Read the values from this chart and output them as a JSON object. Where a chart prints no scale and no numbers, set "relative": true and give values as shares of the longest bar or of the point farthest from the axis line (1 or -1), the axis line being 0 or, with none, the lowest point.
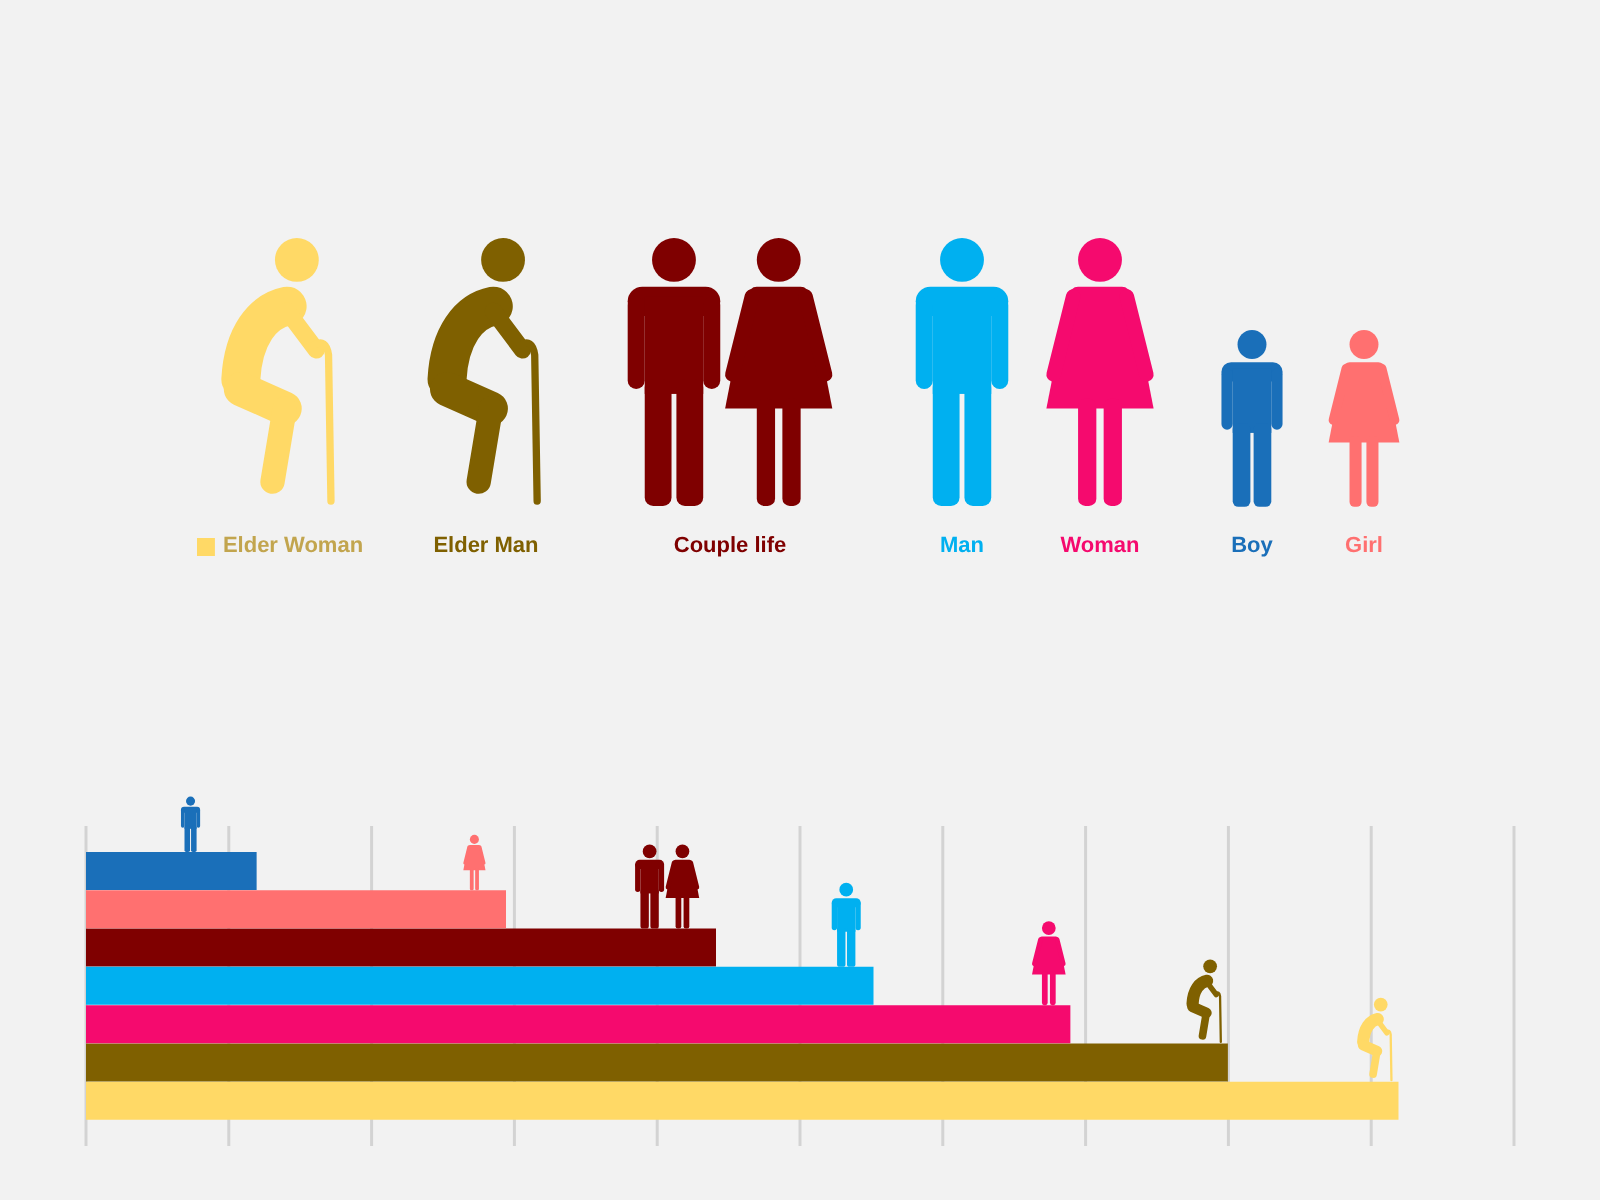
{
  "chart_data": {
    "type": "bar",
    "orientation": "horizontal",
    "stacked": true,
    "relative": true,
    "grid": "x",
    "legend": "top",
    "categories": [
      null,
      null,
      null,
      null,
      null,
      null,
      null
    ],
    "series": [
      {
        "name": "Elder Woman",
        "color": "#ffd966",
        "values": [
          null,
          null,
          null,
          null,
          null,
          null,
          1
        ]
      },
      {
        "name": "Elder Man",
        "color": "#7f6000",
        "values": [
          null,
          null,
          null,
          null,
          null,
          0.87,
          null
        ]
      },
      {
        "name": "Couple life",
        "color": "#7f0000",
        "values": [
          null,
          null,
          0.48,
          null,
          null,
          null,
          null
        ]
      },
      {
        "name": "Man",
        "color": "#00b0f0",
        "values": [
          null,
          null,
          null,
          0.6,
          null,
          null,
          null
        ]
      },
      {
        "name": "Woman",
        "color": "#f50a6e",
        "values": [
          null,
          null,
          null,
          null,
          0.75,
          null,
          null
        ]
      },
      {
        "name": "Boy",
        "color": "#1a6fb9",
        "values": [
          0.13,
          null,
          null,
          null,
          null,
          null,
          null
        ]
      },
      {
        "name": "Girl",
        "color": "#ff7070",
        "values": [
          null,
          0.32,
          null,
          null,
          null,
          null,
          null
        ]
      }
    ]
  }
}
